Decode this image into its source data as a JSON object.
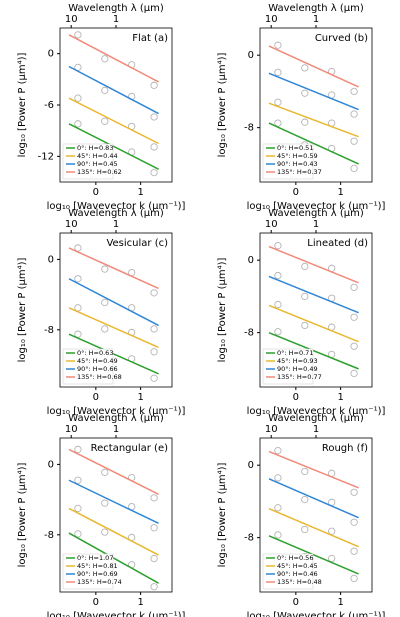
{
  "chart_data": [
    {
      "type": "scatter",
      "title": "Flat (a)",
      "x_label": "log₁₀ [Wavevector k (μm⁻¹)]",
      "y_label": "log₁₀ [Power P (μm⁴)]",
      "x2_label": "Wavelength λ (μm)",
      "xlim": [
        -0.8,
        1.7
      ],
      "ylim": [
        -15,
        3
      ],
      "xticks": [
        0,
        1
      ],
      "yticks": [
        -12,
        -6,
        0
      ],
      "x2ticks": [
        {
          "value": -0.55,
          "label": "10"
        },
        {
          "value": 0.45,
          "label": "1"
        }
      ],
      "fit_x": [
        -0.6,
        1.4
      ],
      "points_x": [
        -0.4,
        0.2,
        0.8,
        1.3
      ],
      "series": [
        {
          "name": "0°: H=0.83",
          "color": "#2ca02c",
          "values": [
            -8.2,
            -13.5
          ],
          "points": [
            -8.2,
            -10.9,
            -11.5,
            -13.9
          ]
        },
        {
          "name": "45°: H=0.44",
          "color": "#e8b830",
          "values": [
            -5.2,
            -10.5
          ],
          "points": [
            -5.2,
            -7.9,
            -8.5,
            -10.9
          ]
        },
        {
          "name": "90°: H=0.45",
          "color": "#2f86d6",
          "values": [
            -1.5,
            -7.0
          ],
          "points": [
            -1.6,
            -4.3,
            -5.0,
            -7.4
          ]
        },
        {
          "name": "135°: H=0.62",
          "color": "#f08a7a",
          "values": [
            2.2,
            -3.3
          ],
          "points": [
            2.2,
            -0.6,
            -1.3,
            -3.7
          ]
        }
      ]
    },
    {
      "type": "scatter",
      "title": "Curved (b)",
      "x_label": "log₁₀ [Wavevector k (μm⁻¹)]",
      "y_label": "log₁₀ [Power P (μm⁴)]",
      "x2_label": "Wavelength λ (μm)",
      "xlim": [
        -0.8,
        1.7
      ],
      "ylim": [
        -14,
        3
      ],
      "xticks": [
        0,
        1
      ],
      "yticks": [
        -8,
        0
      ],
      "x2ticks": [
        {
          "value": -0.55,
          "label": "10"
        },
        {
          "value": 0.45,
          "label": "1"
        }
      ],
      "fit_x": [
        -0.6,
        1.4
      ],
      "points_x": [
        -0.4,
        0.2,
        0.8,
        1.3
      ],
      "series": [
        {
          "name": "0°: H=0.51",
          "color": "#2ca02c",
          "values": [
            -7.5,
            -12
          ],
          "points": [
            -7.5,
            -9.9,
            -10.3,
            -12.5
          ]
        },
        {
          "name": "45°: H=0.59",
          "color": "#e8b830",
          "values": [
            -5.3,
            -9
          ],
          "points": [
            -5.2,
            -7.4,
            -7.5,
            -9.5
          ]
        },
        {
          "name": "90°: H=0.43",
          "color": "#2f86d6",
          "values": [
            -2,
            -6
          ],
          "points": [
            -1.9,
            -4.2,
            -4.4,
            -6.5
          ]
        },
        {
          "name": "135°: H=0.37",
          "color": "#f08a7a",
          "values": [
            1,
            -3.5
          ],
          "points": [
            1.1,
            -1.4,
            -1.8,
            -4.0
          ]
        }
      ]
    },
    {
      "type": "scatter",
      "title": "Vesicular (c)",
      "x_label": "log₁₀ [Wavevector k (μm⁻¹)]",
      "y_label": "log₁₀ [Power P (μm⁴)]",
      "x2_label": "Wavelength λ (μm)",
      "xlim": [
        -0.8,
        1.7
      ],
      "ylim": [
        -14.5,
        3
      ],
      "xticks": [
        0,
        1
      ],
      "yticks": [
        -8,
        0
      ],
      "x2ticks": [
        {
          "value": -0.55,
          "label": "10"
        },
        {
          "value": 0.45,
          "label": "1"
        }
      ],
      "fit_x": [
        -0.6,
        1.4
      ],
      "points_x": [
        -0.4,
        0.2,
        0.8,
        1.3
      ],
      "series": [
        {
          "name": "0°: H=0.63",
          "color": "#2ca02c",
          "values": [
            -8.5,
            -13
          ],
          "points": [
            -8.5,
            -10.9,
            -11.3,
            -13.5
          ]
        },
        {
          "name": "45°: H=0.49",
          "color": "#e8b830",
          "values": [
            -5.5,
            -10
          ],
          "points": [
            -5.5,
            -7.9,
            -8.3,
            -10.5
          ]
        },
        {
          "name": "90°: H=0.66",
          "color": "#2f86d6",
          "values": [
            -2.2,
            -7.5
          ],
          "points": [
            -2.2,
            -4.9,
            -5.5,
            -7.9
          ]
        },
        {
          "name": "135°: H=0.68",
          "color": "#f08a7a",
          "values": [
            1.3,
            -3.3
          ],
          "points": [
            1.3,
            -1.1,
            -1.5,
            -3.8
          ]
        }
      ]
    },
    {
      "type": "scatter",
      "title": "Lineated (d)",
      "x_label": "log₁₀ [Wavevector k (μm⁻¹)]",
      "y_label": "log₁₀ [Power P (μm⁴)]",
      "x2_label": "Wavelength λ (μm)",
      "xlim": [
        -0.8,
        1.7
      ],
      "ylim": [
        -14,
        3
      ],
      "xticks": [
        0,
        1
      ],
      "yticks": [
        -8,
        0
      ],
      "x2ticks": [
        {
          "value": -0.55,
          "label": "10"
        },
        {
          "value": 0.45,
          "label": "1"
        }
      ],
      "fit_x": [
        -0.6,
        1.4
      ],
      "points_x": [
        -0.4,
        0.2,
        0.8,
        1.3
      ],
      "series": [
        {
          "name": "0°: H=0.71",
          "color": "#2ca02c",
          "values": [
            -8,
            -12
          ],
          "points": [
            -7.9,
            -10.2,
            -10.4,
            -12.5
          ]
        },
        {
          "name": "45°: H=0.93",
          "color": "#e8b830",
          "values": [
            -5,
            -9
          ],
          "points": [
            -4.9,
            -7.2,
            -7.4,
            -9.5
          ]
        },
        {
          "name": "90°: H=0.49",
          "color": "#2f86d6",
          "values": [
            -1.8,
            -5.8
          ],
          "points": [
            -1.7,
            -4.0,
            -4.2,
            -6.3
          ]
        },
        {
          "name": "135°: H=0.77",
          "color": "#f08a7a",
          "values": [
            1.5,
            -2.5
          ],
          "points": [
            1.6,
            -0.7,
            -0.9,
            -3.0
          ]
        }
      ]
    },
    {
      "type": "scatter",
      "title": "Rectangular (e)",
      "x_label": "log₁₀ [Wavevector k (μm⁻¹)]",
      "y_label": "log₁₀ [Power P (μm⁴)]",
      "x2_label": "Wavelength λ (μm)",
      "xlim": [
        -0.8,
        1.7
      ],
      "ylim": [
        -14.5,
        3
      ],
      "xticks": [
        0,
        1
      ],
      "yticks": [
        -8,
        0
      ],
      "x2ticks": [
        {
          "value": -0.55,
          "label": "10"
        },
        {
          "value": 0.45,
          "label": "1"
        }
      ],
      "fit_x": [
        -0.6,
        1.4
      ],
      "points_x": [
        -0.4,
        0.2,
        0.8,
        1.3
      ],
      "series": [
        {
          "name": "0°: H=1.07",
          "color": "#2ca02c",
          "values": [
            -7.8,
            -13.5
          ],
          "points": [
            -7.9,
            -10.7,
            -11.4,
            -13.9
          ]
        },
        {
          "name": "45°: H=0.81",
          "color": "#e8b830",
          "values": [
            -5,
            -10.3
          ],
          "points": [
            -5.0,
            -7.7,
            -8.3,
            -10.7
          ]
        },
        {
          "name": "90°: H=0.69",
          "color": "#2f86d6",
          "values": [
            -1.8,
            -6.7
          ],
          "points": [
            -1.8,
            -4.4,
            -4.8,
            -7.2
          ]
        },
        {
          "name": "135°: H=0.74",
          "color": "#f08a7a",
          "values": [
            1.7,
            -3.4
          ],
          "points": [
            1.7,
            -0.9,
            -1.5,
            -3.8
          ]
        }
      ]
    },
    {
      "type": "scatter",
      "title": "Rough (f)",
      "x_label": "log₁₀ [Wavevector k (μm⁻¹)]",
      "y_label": "log₁₀ [Power P (μm⁴)]",
      "x2_label": "Wavelength λ (μm)",
      "xlim": [
        -0.8,
        1.7
      ],
      "ylim": [
        -14,
        3
      ],
      "xticks": [
        0,
        1
      ],
      "yticks": [
        -8,
        0
      ],
      "x2ticks": [
        {
          "value": -0.55,
          "label": "10"
        },
        {
          "value": 0.45,
          "label": "1"
        }
      ],
      "fit_x": [
        -0.6,
        1.4
      ],
      "points_x": [
        -0.4,
        0.2,
        0.8,
        1.3
      ],
      "series": [
        {
          "name": "0°: H=0.56",
          "color": "#2ca02c",
          "values": [
            -7.8,
            -12
          ],
          "points": [
            -7.7,
            -10.1,
            -10.3,
            -12.5
          ]
        },
        {
          "name": "45°: H=0.45",
          "color": "#e8b830",
          "values": [
            -4.8,
            -9
          ],
          "points": [
            -4.7,
            -7.1,
            -7.3,
            -9.5
          ]
        },
        {
          "name": "90°: H=0.46",
          "color": "#2f86d6",
          "values": [
            -1.5,
            -5.8
          ],
          "points": [
            -1.4,
            -3.8,
            -4.1,
            -6.3
          ]
        },
        {
          "name": "135°: H=0.48",
          "color": "#f08a7a",
          "values": [
            1.5,
            -2.5
          ],
          "points": [
            1.6,
            -0.7,
            -0.9,
            -3.0
          ]
        }
      ]
    }
  ]
}
